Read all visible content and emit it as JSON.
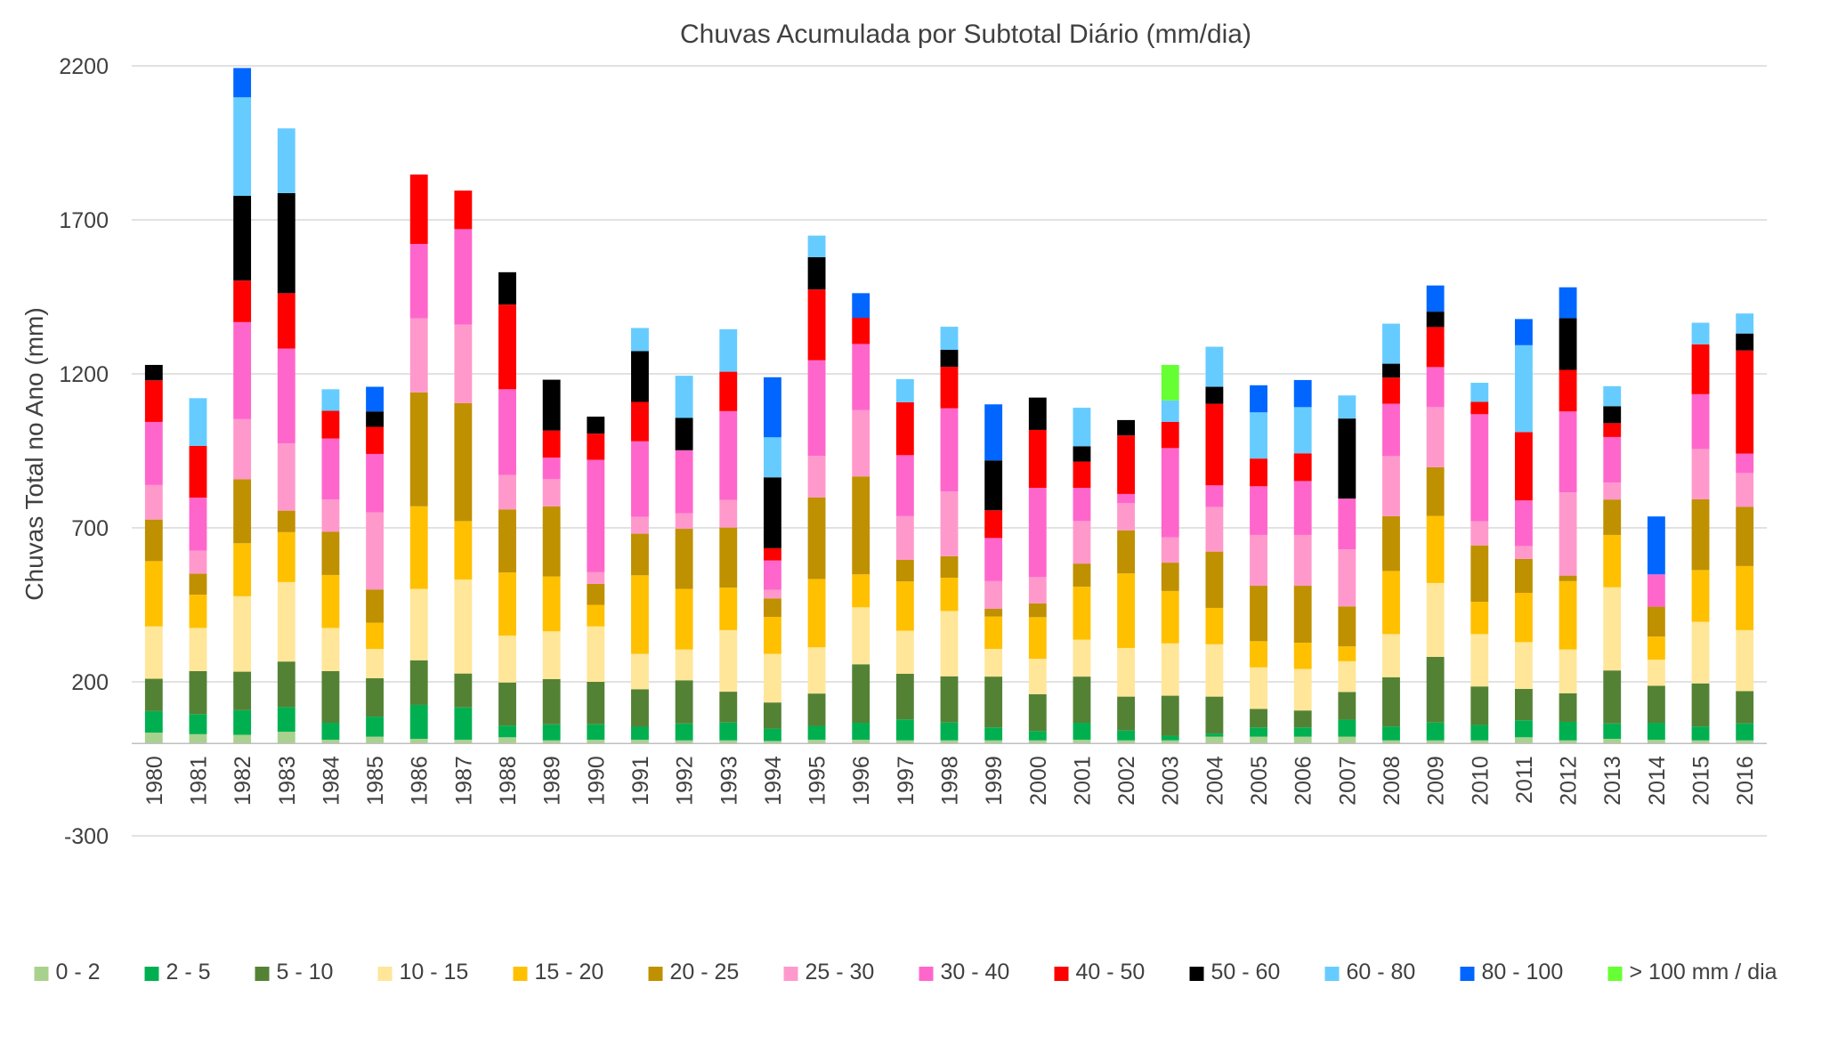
{
  "chart_data": {
    "type": "bar",
    "stacked": true,
    "title": "Chuvas Acumulada por Subtotal Diário (mm/dia)",
    "xlabel": "",
    "ylabel": "Chuvas Total no Ano (mm)",
    "ylim": [
      -300,
      2200
    ],
    "yticks": [
      -300,
      200,
      700,
      1200,
      1700,
      2200
    ],
    "grid": true,
    "legend_position": "bottom",
    "categories": [
      "1980",
      "1981",
      "1982",
      "1983",
      "1984",
      "1985",
      "1986",
      "1987",
      "1988",
      "1989",
      "1990",
      "1991",
      "1992",
      "1993",
      "1994",
      "1995",
      "1996",
      "1997",
      "1998",
      "1999",
      "2000",
      "2001",
      "2002",
      "2003",
      "2004",
      "2005",
      "2006",
      "2007",
      "2008",
      "2009",
      "2010",
      "2011",
      "2012",
      "2013",
      "2014",
      "2015",
      "2016"
    ],
    "series": [
      {
        "name": "0 - 2",
        "color": "#a9d18e",
        "values": [
          35,
          30,
          28,
          38,
          12,
          22,
          15,
          12,
          20,
          10,
          12,
          12,
          10,
          10,
          8,
          12,
          12,
          10,
          10,
          10,
          10,
          12,
          10,
          10,
          22,
          22,
          22,
          22,
          10,
          10,
          10,
          20,
          10,
          15,
          12,
          10,
          10
        ]
      },
      {
        "name": "2 - 5",
        "color": "#00b050",
        "values": [
          70,
          65,
          80,
          80,
          55,
          65,
          110,
          105,
          38,
          52,
          50,
          42,
          55,
          58,
          40,
          45,
          55,
          68,
          58,
          42,
          30,
          55,
          32,
          15,
          10,
          30,
          30,
          55,
          45,
          58,
          50,
          55,
          60,
          50,
          55,
          45,
          55
        ]
      },
      {
        "name": "5 - 10",
        "color": "#548235",
        "values": [
          105,
          140,
          125,
          148,
          168,
          125,
          145,
          110,
          140,
          147,
          138,
          122,
          140,
          100,
          85,
          105,
          190,
          148,
          150,
          165,
          120,
          150,
          110,
          130,
          120,
          60,
          55,
          90,
          160,
          213,
          125,
          102,
          93,
          172,
          120,
          140,
          105
        ]
      },
      {
        "name": "10 - 15",
        "color": "#ffe699",
        "values": [
          170,
          140,
          245,
          258,
          140,
          95,
          232,
          305,
          152,
          155,
          180,
          115,
          100,
          200,
          158,
          150,
          185,
          140,
          212,
          90,
          115,
          120,
          158,
          170,
          170,
          135,
          135,
          100,
          140,
          240,
          170,
          152,
          142,
          270,
          85,
          200,
          198
        ]
      },
      {
        "name": "15 - 20",
        "color": "#ffc000",
        "values": [
          212,
          108,
          172,
          162,
          172,
          85,
          268,
          190,
          205,
          178,
          70,
          255,
          197,
          138,
          120,
          222,
          107,
          160,
          108,
          105,
          135,
          172,
          242,
          170,
          118,
          85,
          85,
          48,
          205,
          218,
          105,
          160,
          222,
          170,
          75,
          168,
          208
        ]
      },
      {
        "name": "20 - 25",
        "color": "#bf9000",
        "values": [
          135,
          68,
          208,
          70,
          140,
          108,
          370,
          383,
          205,
          228,
          68,
          135,
          195,
          195,
          60,
          265,
          318,
          70,
          70,
          25,
          45,
          75,
          140,
          92,
          183,
          180,
          185,
          130,
          178,
          158,
          183,
          110,
          18,
          115,
          97,
          230,
          192
        ]
      },
      {
        "name": "25 - 30",
        "color": "#ff99cc",
        "values": [
          112,
          75,
          195,
          218,
          105,
          250,
          240,
          255,
          112,
          88,
          38,
          55,
          50,
          90,
          28,
          135,
          215,
          142,
          210,
          90,
          85,
          138,
          88,
          82,
          145,
          165,
          165,
          185,
          195,
          195,
          78,
          42,
          270,
          55,
          0,
          163,
          110
        ]
      },
      {
        "name": "30 - 40",
        "color": "#ff66cc",
        "values": [
          205,
          172,
          315,
          308,
          198,
          190,
          242,
          310,
          278,
          70,
          365,
          245,
          205,
          288,
          95,
          310,
          215,
          198,
          270,
          140,
          290,
          108,
          30,
          290,
          70,
          158,
          175,
          165,
          170,
          130,
          348,
          148,
          263,
          148,
          105,
          178,
          63
        ]
      },
      {
        "name": "40 - 50",
        "color": "#ff0000",
        "values": [
          135,
          168,
          135,
          180,
          90,
          88,
          225,
          125,
          275,
          88,
          85,
          128,
          0,
          128,
          40,
          230,
          85,
          172,
          135,
          90,
          188,
          85,
          190,
          85,
          265,
          90,
          90,
          0,
          85,
          130,
          40,
          222,
          135,
          45,
          0,
          162,
          335
        ]
      },
      {
        "name": "50 - 60",
        "color": "#000000",
        "values": [
          50,
          0,
          275,
          325,
          0,
          50,
          0,
          0,
          105,
          165,
          55,
          165,
          105,
          0,
          230,
          105,
          0,
          0,
          55,
          162,
          105,
          50,
          50,
          0,
          55,
          0,
          0,
          260,
          45,
          50,
          0,
          0,
          168,
          55,
          0,
          0,
          55
        ]
      },
      {
        "name": "60 - 80",
        "color": "#66ccff",
        "values": [
          0,
          155,
          320,
          210,
          70,
          0,
          0,
          0,
          0,
          0,
          0,
          75,
          137,
          138,
          130,
          70,
          0,
          75,
          75,
          0,
          0,
          125,
          0,
          70,
          130,
          150,
          150,
          75,
          130,
          0,
          62,
          282,
          0,
          65,
          0,
          70,
          65
        ]
      },
      {
        "name": "80 - 100",
        "color": "#0066ff",
        "values": [
          0,
          0,
          95,
          0,
          0,
          80,
          0,
          0,
          0,
          0,
          0,
          0,
          0,
          0,
          195,
          0,
          80,
          0,
          0,
          182,
          0,
          0,
          0,
          0,
          0,
          88,
          88,
          0,
          0,
          85,
          0,
          85,
          100,
          0,
          188,
          0,
          0
        ]
      },
      {
        "name": "> 100 mm / dia",
        "color": "#66ff33",
        "values": [
          0,
          0,
          0,
          0,
          0,
          0,
          0,
          0,
          0,
          0,
          0,
          0,
          0,
          0,
          0,
          0,
          0,
          0,
          0,
          0,
          0,
          0,
          0,
          115,
          0,
          0,
          0,
          0,
          0,
          0,
          0,
          0,
          0,
          0,
          0,
          0,
          0
        ]
      }
    ]
  }
}
